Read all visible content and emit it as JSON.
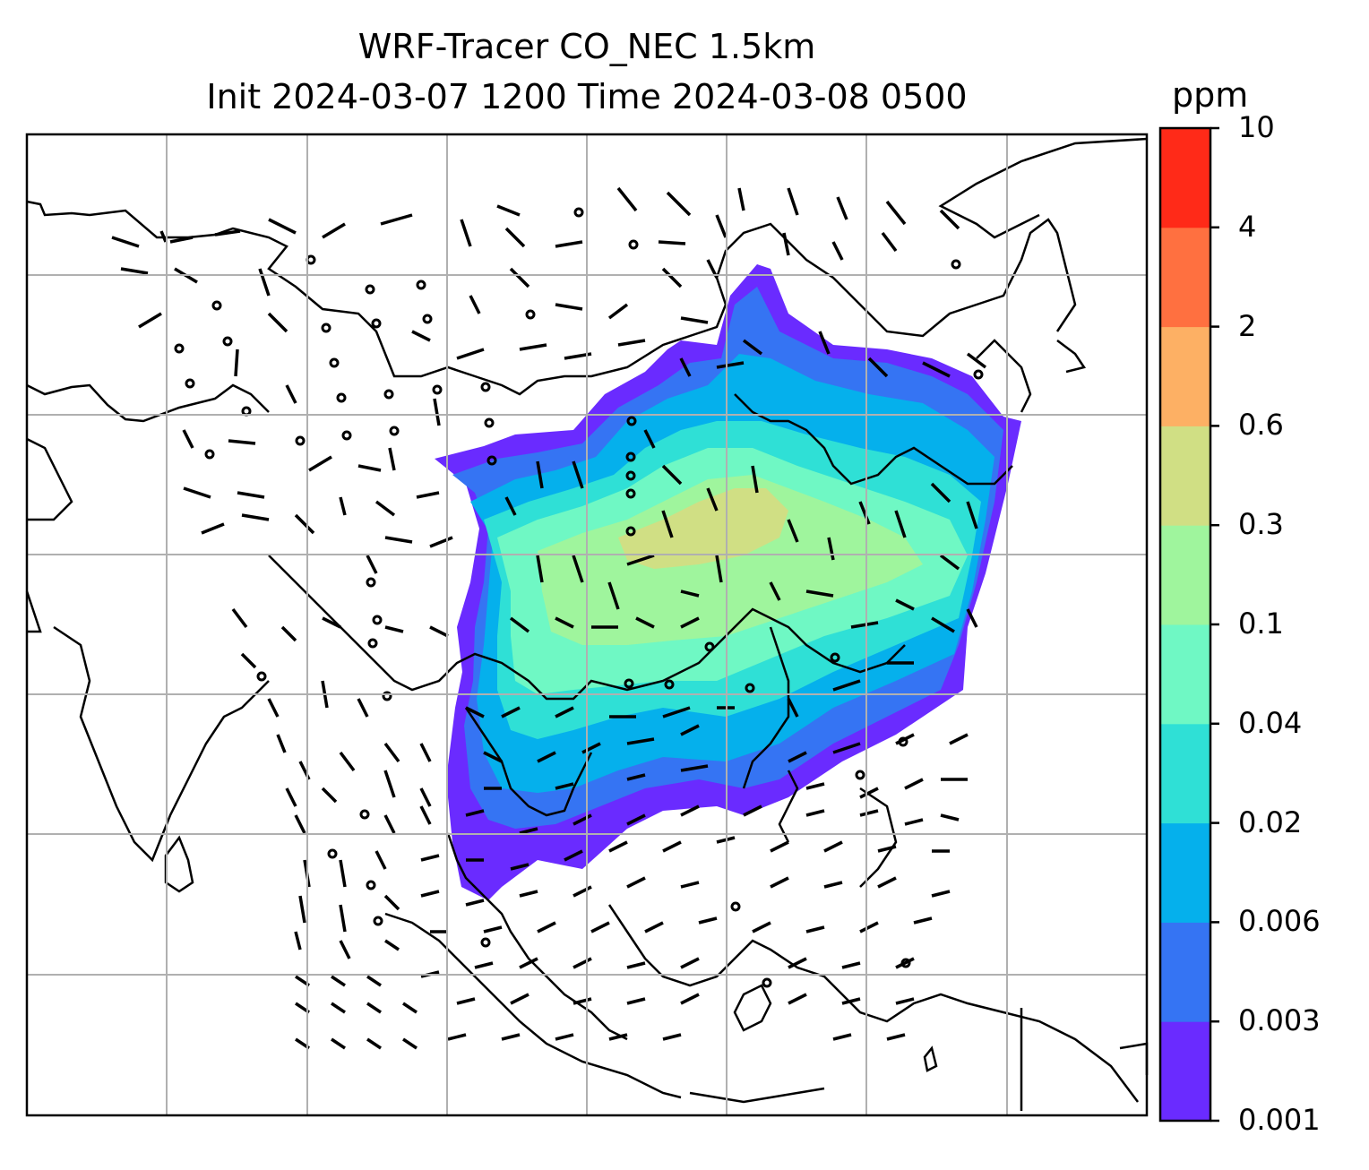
{
  "title_line1": "WRF-Tracer CO_NEC 1.5km",
  "title_line2": "Init 2024-03-07 1200 Time 2024-03-08 0500",
  "colorbar": {
    "unit": "ppm",
    "labels": [
      "0.001",
      "0.003",
      "0.006",
      "0.02",
      "0.04",
      "0.1",
      "0.3",
      "0.6",
      "2",
      "4",
      "10"
    ],
    "colors": [
      "#6a2bff",
      "#3574f3",
      "#05b0ec",
      "#2fe0d6",
      "#6ff8c4",
      "#9ff59d",
      "#d0df84",
      "#fdb064",
      "#ff7040",
      "#ff2a18"
    ]
  },
  "map": {
    "gridlines": true,
    "features": [
      "coastlines",
      "country-borders",
      "wind-barbs",
      "tracer-concentration-field"
    ]
  }
}
